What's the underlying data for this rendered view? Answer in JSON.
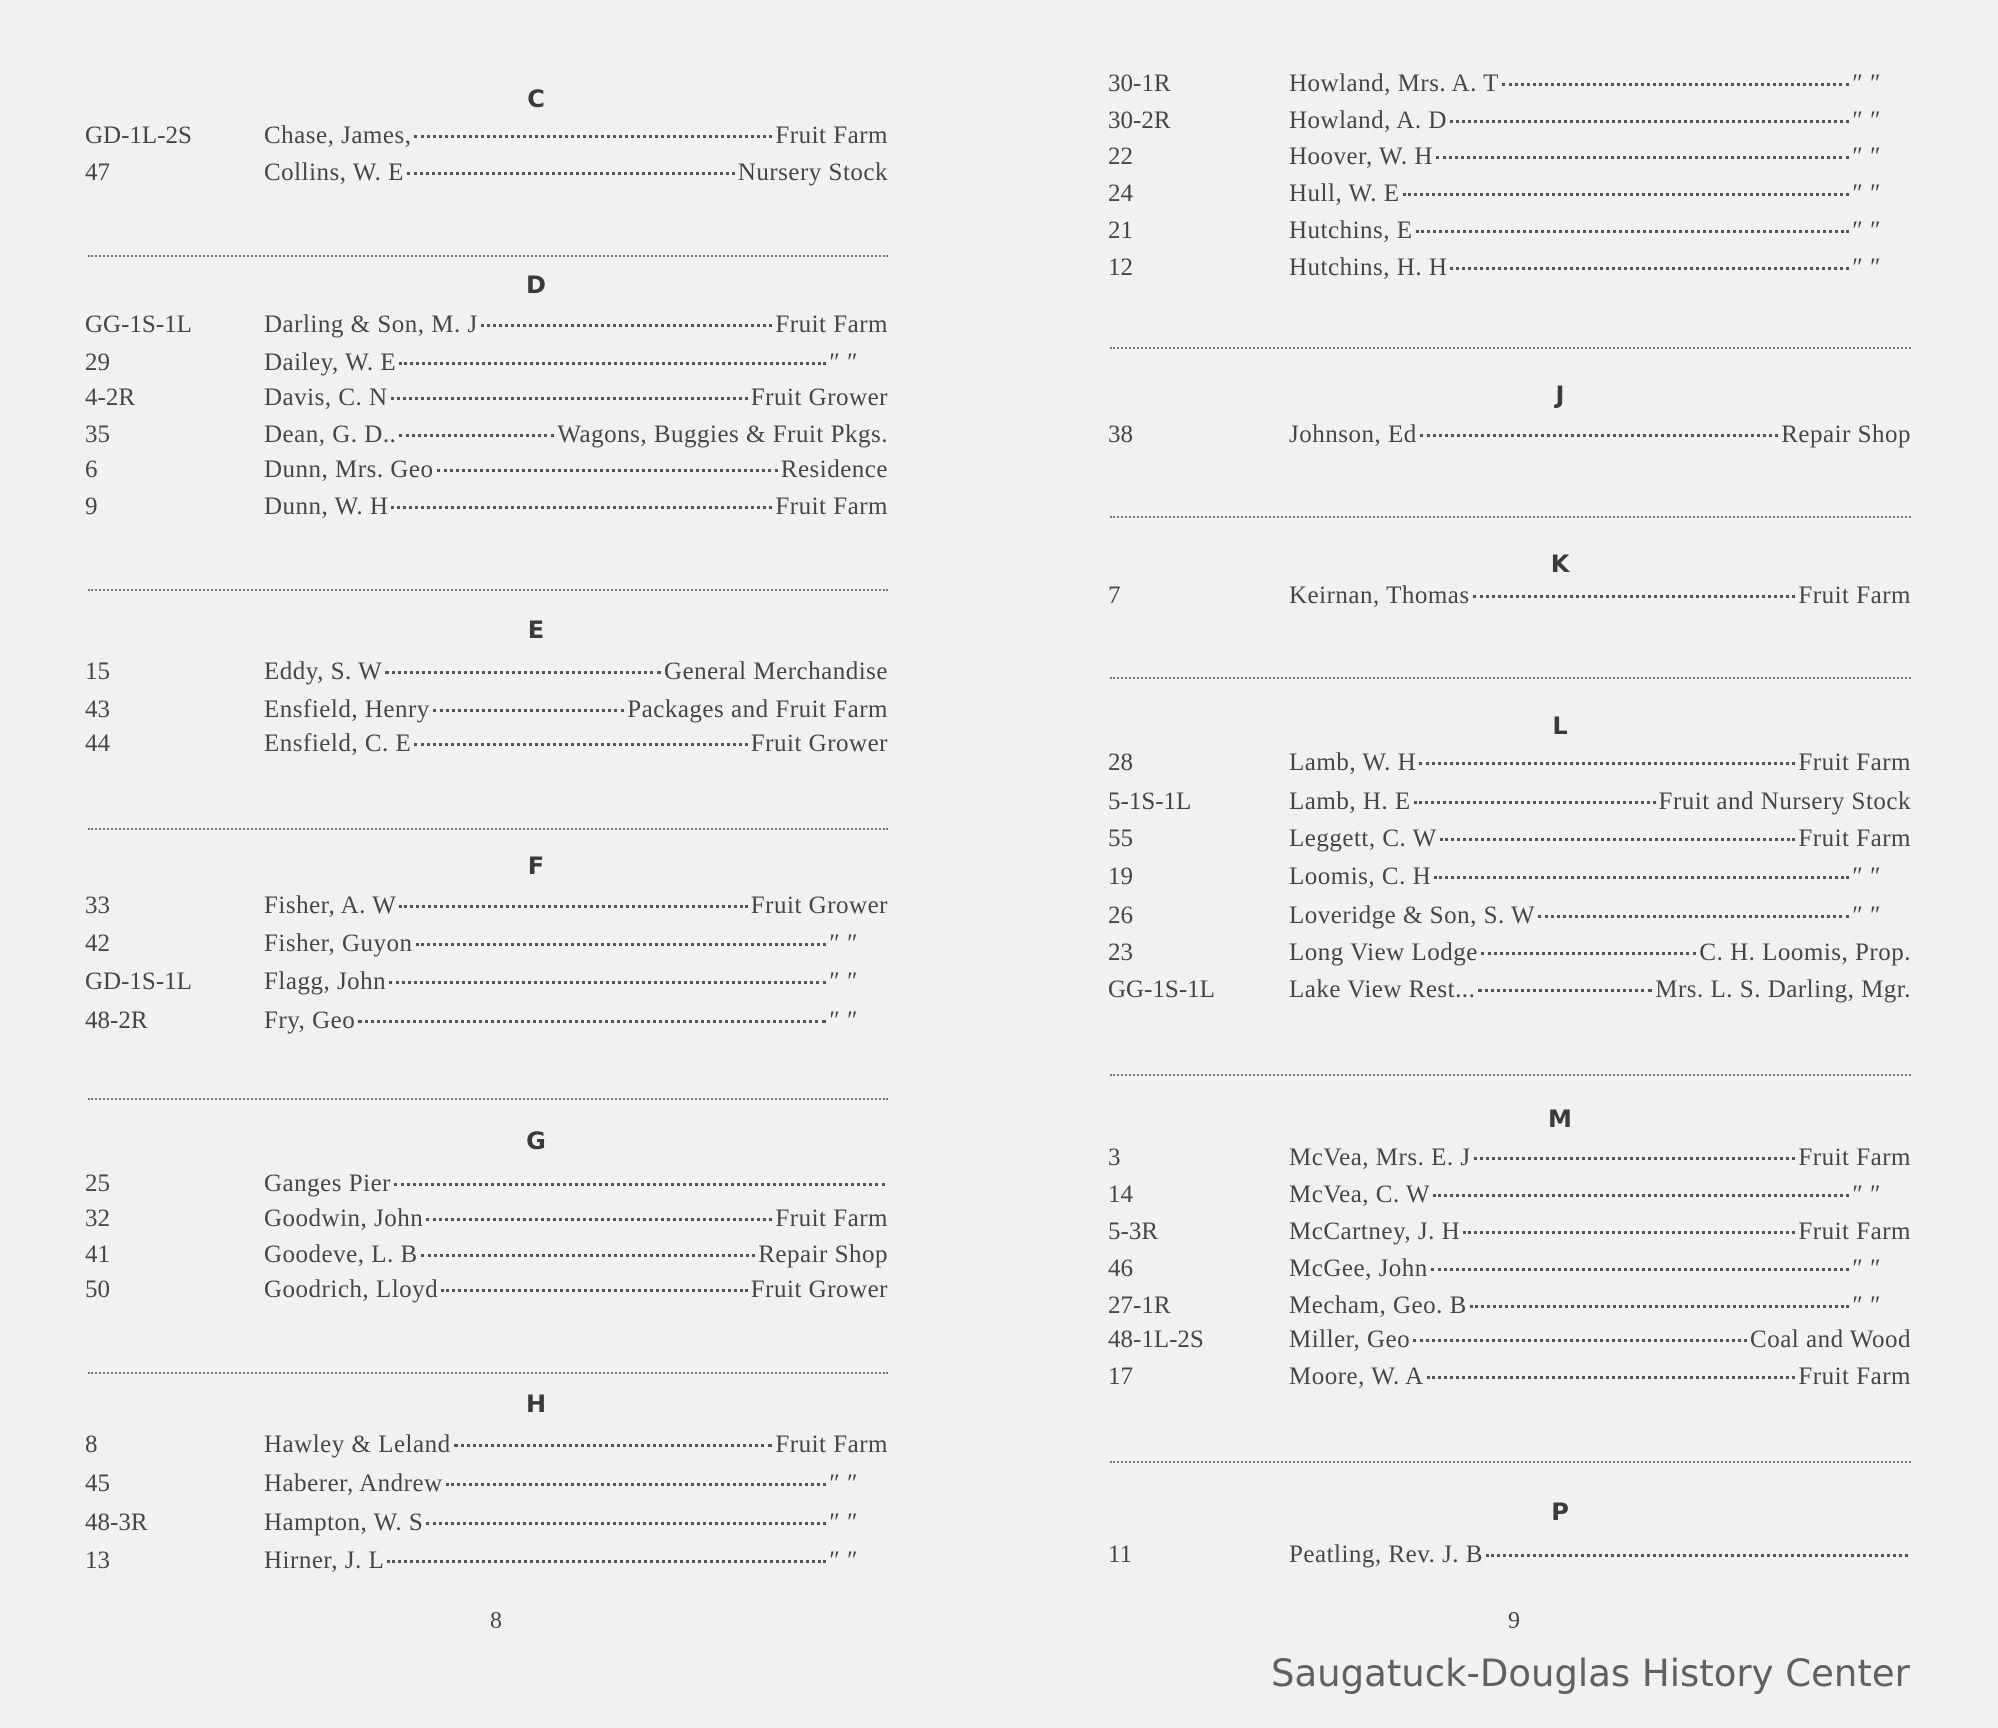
{
  "left_page": {
    "page_number": "8",
    "sections": [
      {
        "letter": "C",
        "entries": [
          {
            "code": "GD-1L-2S",
            "name": "Chase, James,",
            "value": "Fruit Farm"
          },
          {
            "code": "47",
            "name": "Collins, W. E",
            "value": "Nursery Stock"
          }
        ]
      },
      {
        "letter": "D",
        "entries": [
          {
            "code": "GG-1S-1L",
            "name": "Darling & Son, M. J",
            "value": "Fruit Farm"
          },
          {
            "code": "29",
            "name": "Dailey, W. E",
            "value": "″      ″"
          },
          {
            "code": "4-2R",
            "name": "Davis, C. N",
            "value": "Fruit Grower"
          },
          {
            "code": "35",
            "name": "Dean, G. D..",
            "value": "Wagons, Buggies & Fruit Pkgs."
          },
          {
            "code": "6",
            "name": "Dunn, Mrs. Geo",
            "value": "Residence"
          },
          {
            "code": "9",
            "name": "Dunn, W. H",
            "value": "Fruit Farm"
          }
        ]
      },
      {
        "letter": "E",
        "entries": [
          {
            "code": "15",
            "name": "Eddy, S. W",
            "value": "General Merchandise"
          },
          {
            "code": "43",
            "name": "Ensfield, Henry",
            "value": "Packages and Fruit Farm"
          },
          {
            "code": "44",
            "name": "Ensfield, C. E",
            "value": "Fruit Grower"
          }
        ]
      },
      {
        "letter": "F",
        "entries": [
          {
            "code": "33",
            "name": "Fisher, A. W",
            "value": "Fruit Grower"
          },
          {
            "code": "42",
            "name": "Fisher, Guyon",
            "value": "″      ″"
          },
          {
            "code": "GD-1S-1L",
            "name": "Flagg, John",
            "value": "″      ″"
          },
          {
            "code": "48-2R",
            "name": "Fry, Geo",
            "value": "″      ″"
          }
        ]
      },
      {
        "letter": "G",
        "entries": [
          {
            "code": "25",
            "name": "Ganges Pier",
            "value": ""
          },
          {
            "code": "32",
            "name": "Goodwin, John",
            "value": "Fruit Farm"
          },
          {
            "code": "41",
            "name": "Goodeve, L. B",
            "value": "Repair Shop"
          },
          {
            "code": "50",
            "name": "Goodrich, Lloyd",
            "value": "Fruit Grower"
          }
        ]
      },
      {
        "letter": "H",
        "entries": [
          {
            "code": "8",
            "name": "Hawley & Leland",
            "value": "Fruit Farm"
          },
          {
            "code": "45",
            "name": "Haberer, Andrew",
            "value": "″      ″"
          },
          {
            "code": "48-3R",
            "name": "Hampton, W. S",
            "value": "″      ″"
          },
          {
            "code": "13",
            "name": "Hirner, J. L",
            "value": "″      ″"
          }
        ]
      }
    ]
  },
  "right_page": {
    "page_number": "9",
    "sections": [
      {
        "letter": "",
        "entries": [
          {
            "code": "30-1R",
            "name": "Howland, Mrs. A. T",
            "value": "″      ″"
          },
          {
            "code": "30-2R",
            "name": "Howland, A. D",
            "value": "″      ″"
          },
          {
            "code": "22",
            "name": "Hoover, W. H",
            "value": "″      ″"
          },
          {
            "code": "24",
            "name": "Hull, W. E",
            "value": "″      ″"
          },
          {
            "code": "21",
            "name": "Hutchins, E",
            "value": "″      ″"
          },
          {
            "code": "12",
            "name": "Hutchins, H. H",
            "value": "″      ″"
          }
        ]
      },
      {
        "letter": "J",
        "entries": [
          {
            "code": "38",
            "name": "Johnson, Ed",
            "value": "Repair Shop"
          }
        ]
      },
      {
        "letter": "K",
        "entries": [
          {
            "code": "7",
            "name": "Keirnan, Thomas",
            "value": "Fruit Farm"
          }
        ]
      },
      {
        "letter": "L",
        "entries": [
          {
            "code": "28",
            "name": "Lamb, W. H",
            "value": "Fruit Farm"
          },
          {
            "code": "5-1S-1L",
            "name": "Lamb, H. E",
            "value": "Fruit and Nursery Stock"
          },
          {
            "code": "55",
            "name": "Leggett, C. W",
            "value": "Fruit Farm"
          },
          {
            "code": "19",
            "name": "Loomis, C. H",
            "value": "″      ″"
          },
          {
            "code": "26",
            "name": "Loveridge & Son, S. W",
            "value": "″      ″"
          },
          {
            "code": "23",
            "name": "Long View Lodge",
            "value": "C. H. Loomis, Prop."
          },
          {
            "code": "GG-1S-1L",
            "name": "Lake View Rest...",
            "value": "Mrs. L. S. Darling, Mgr."
          }
        ]
      },
      {
        "letter": "M",
        "entries": [
          {
            "code": "3",
            "name": "McVea, Mrs. E. J",
            "value": "Fruit Farm"
          },
          {
            "code": "14",
            "name": "McVea, C. W",
            "value": "″      ″"
          },
          {
            "code": "5-3R",
            "name": "McCartney, J. H",
            "value": "Fruit Farm"
          },
          {
            "code": "46",
            "name": "McGee, John",
            "value": "″      ″"
          },
          {
            "code": "27-1R",
            "name": "Mecham, Geo. B",
            "value": "″      ″"
          },
          {
            "code": "48-1L-2S",
            "name": "Miller, Geo",
            "value": "Coal and Wood"
          },
          {
            "code": "17",
            "name": "Moore, W. A",
            "value": "Fruit Farm"
          }
        ]
      },
      {
        "letter": "P",
        "entries": [
          {
            "code": "11",
            "name": "Peatling, Rev. J. B",
            "value": ""
          }
        ]
      }
    ]
  },
  "watermark": "Saugatuck-Douglas History Center"
}
